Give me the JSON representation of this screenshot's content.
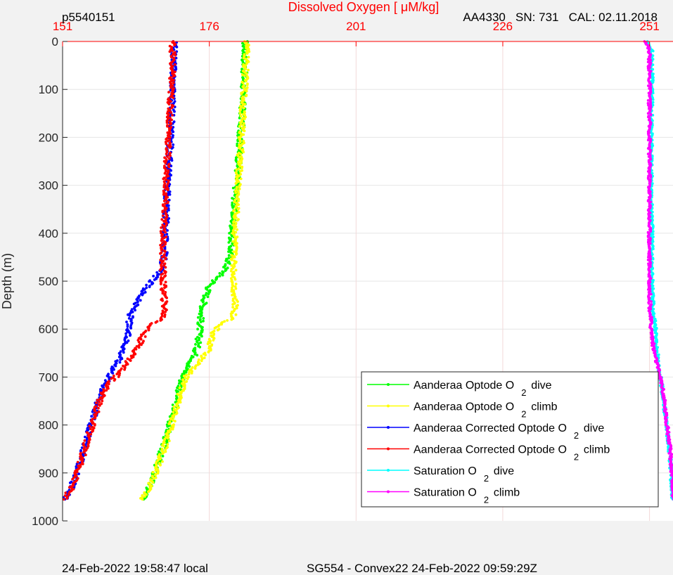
{
  "header": {
    "left_id": "p5540151",
    "sensor": "AA4330   SN: 731   CAL: 02.11.2018"
  },
  "footer": {
    "local_time": "24-Feb-2022 19:58:47 local",
    "mission": "SG554 - Convex22 24-Feb-2022 09:59:29Z"
  },
  "chart_data": {
    "type": "scatter",
    "title": "",
    "xlabel": "Dissolved Oxygen [ μM/kg]",
    "ylabel": "Depth (m)",
    "xlim": [
      151,
      255
    ],
    "ylim": [
      0,
      1000
    ],
    "y_reversed": true,
    "x_axis_location": "top",
    "grid": true,
    "x_ticks": [
      151,
      176,
      201,
      226,
      251
    ],
    "y_ticks": [
      0,
      100,
      200,
      300,
      400,
      500,
      600,
      700,
      800,
      900,
      1000
    ],
    "legend_position": "bottom-right",
    "series": [
      {
        "name": "Aanderaa Optode O 2 dive",
        "legend_main": "Aanderaa Optode O",
        "legend_sub": "2",
        "legend_suffix": "dive",
        "color": "#00ff00",
        "points": [
          [
            182.1,
            0
          ],
          [
            182,
            50
          ],
          [
            181.8,
            100
          ],
          [
            181.6,
            150
          ],
          [
            181.3,
            200
          ],
          [
            181,
            250
          ],
          [
            180.6,
            300
          ],
          [
            180.2,
            350
          ],
          [
            179.9,
            400
          ],
          [
            179.5,
            450
          ],
          [
            178.5,
            480
          ],
          [
            176,
            510
          ],
          [
            175.2,
            540
          ],
          [
            174.6,
            570
          ],
          [
            174.4,
            600
          ],
          [
            174.1,
            630
          ],
          [
            173.4,
            660
          ],
          [
            172.2,
            680
          ],
          [
            171.5,
            700
          ],
          [
            170.8,
            730
          ],
          [
            170.2,
            760
          ],
          [
            169.5,
            790
          ],
          [
            168.8,
            820
          ],
          [
            168,
            850
          ],
          [
            167.2,
            880
          ],
          [
            166.4,
            910
          ],
          [
            165.5,
            935
          ],
          [
            164.8,
            955
          ]
        ]
      },
      {
        "name": "Aanderaa Optode O 2 climb",
        "legend_main": "Aanderaa Optode O",
        "legend_sub": "2",
        "legend_suffix": "climb",
        "color": "#ffff00",
        "points": [
          [
            182.4,
            0
          ],
          [
            182.2,
            50
          ],
          [
            182,
            100
          ],
          [
            181.7,
            150
          ],
          [
            181.5,
            200
          ],
          [
            181.2,
            250
          ],
          [
            180.9,
            300
          ],
          [
            180.6,
            350
          ],
          [
            180.4,
            400
          ],
          [
            180.2,
            450
          ],
          [
            180.2,
            500
          ],
          [
            180.4,
            560
          ],
          [
            179.8,
            580
          ],
          [
            177.8,
            590
          ],
          [
            176.6,
            610
          ],
          [
            176,
            640
          ],
          [
            174.8,
            660
          ],
          [
            173.4,
            680
          ],
          [
            172,
            700
          ],
          [
            171.2,
            730
          ],
          [
            170.5,
            760
          ],
          [
            169.8,
            790
          ],
          [
            169,
            820
          ],
          [
            168.3,
            850
          ],
          [
            167.4,
            880
          ],
          [
            166.5,
            910
          ],
          [
            165.6,
            935
          ],
          [
            164.6,
            955
          ]
        ]
      },
      {
        "name": "Aanderaa Corrected Optode O 2 dive",
        "legend_main": "Aanderaa Corrected Optode O",
        "legend_sub": "2",
        "legend_suffix": "dive",
        "color": "#0000ff",
        "points": [
          [
            170,
            0
          ],
          [
            169.9,
            50
          ],
          [
            169.8,
            100
          ],
          [
            169.6,
            150
          ],
          [
            169.4,
            200
          ],
          [
            169.2,
            250
          ],
          [
            168.9,
            300
          ],
          [
            168.7,
            350
          ],
          [
            168.5,
            400
          ],
          [
            168.3,
            450
          ],
          [
            167.6,
            480
          ],
          [
            165.5,
            510
          ],
          [
            163.8,
            540
          ],
          [
            162.6,
            570
          ],
          [
            162.2,
            600
          ],
          [
            161.8,
            630
          ],
          [
            160.8,
            660
          ],
          [
            159.4,
            690
          ],
          [
            158.1,
            720
          ],
          [
            157.1,
            750
          ],
          [
            156.4,
            780
          ],
          [
            155.6,
            810
          ],
          [
            154.9,
            840
          ],
          [
            154.2,
            870
          ],
          [
            153.4,
            900
          ],
          [
            152.5,
            930
          ],
          [
            151.4,
            955
          ]
        ]
      },
      {
        "name": "Aanderaa Corrected Optode O 2 climb",
        "legend_main": "Aanderaa Corrected Optode O",
        "legend_sub": "2",
        "legend_suffix": "climb",
        "color": "#ff0000",
        "points": [
          [
            169.8,
            0
          ],
          [
            169.7,
            50
          ],
          [
            169.5,
            100
          ],
          [
            169.3,
            150
          ],
          [
            169.1,
            200
          ],
          [
            168.8,
            250
          ],
          [
            168.6,
            300
          ],
          [
            168.4,
            350
          ],
          [
            168.2,
            400
          ],
          [
            168.1,
            450
          ],
          [
            168.1,
            500
          ],
          [
            168.4,
            560
          ],
          [
            168,
            580
          ],
          [
            166.2,
            590
          ],
          [
            164.8,
            610
          ],
          [
            163.8,
            640
          ],
          [
            162.6,
            660
          ],
          [
            160.8,
            690
          ],
          [
            158.5,
            720
          ],
          [
            157.3,
            750
          ],
          [
            156.5,
            780
          ],
          [
            155.8,
            810
          ],
          [
            155,
            840
          ],
          [
            154.3,
            870
          ],
          [
            153.5,
            900
          ],
          [
            152.6,
            930
          ],
          [
            151.2,
            955
          ]
        ]
      },
      {
        "name": "Saturation O 2 dive",
        "legend_main": "Saturation O",
        "legend_sub": "2",
        "legend_suffix": "dive",
        "color": "#00ffff",
        "points": [
          [
            250.5,
            0
          ],
          [
            251.4,
            20
          ],
          [
            251.4,
            100
          ],
          [
            251.3,
            200
          ],
          [
            251.3,
            300
          ],
          [
            251.4,
            400
          ],
          [
            251.4,
            500
          ],
          [
            251.6,
            560
          ],
          [
            252,
            600
          ],
          [
            252.2,
            640
          ],
          [
            252.6,
            680
          ],
          [
            253.1,
            720
          ],
          [
            253.5,
            760
          ],
          [
            253.9,
            800
          ],
          [
            254.3,
            840
          ],
          [
            254.6,
            880
          ],
          [
            254.8,
            920
          ],
          [
            255,
            955
          ]
        ]
      },
      {
        "name": "Saturation O 2 climb",
        "legend_main": "Saturation O",
        "legend_sub": "2",
        "legend_suffix": "climb",
        "color": "#ff00ff",
        "points": [
          [
            250.4,
            0
          ],
          [
            251,
            20
          ],
          [
            251,
            100
          ],
          [
            251,
            200
          ],
          [
            251,
            300
          ],
          [
            251,
            400
          ],
          [
            251,
            500
          ],
          [
            251.1,
            560
          ],
          [
            251.3,
            600
          ],
          [
            251.7,
            640
          ],
          [
            252.4,
            680
          ],
          [
            253.2,
            720
          ],
          [
            253.6,
            760
          ],
          [
            254,
            800
          ],
          [
            254.4,
            840
          ],
          [
            254.7,
            880
          ],
          [
            254.9,
            920
          ],
          [
            255.1,
            955
          ]
        ]
      }
    ]
  }
}
